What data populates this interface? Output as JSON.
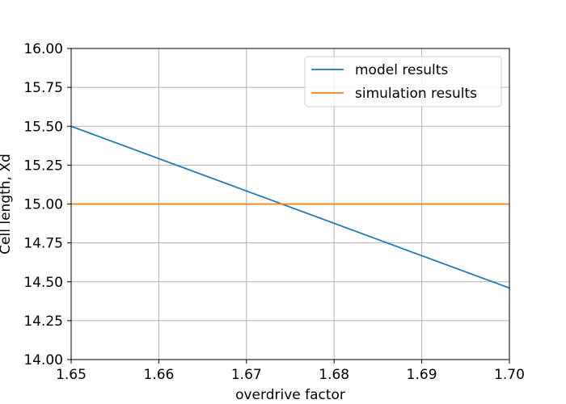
{
  "chart_data": {
    "type": "line",
    "title": "",
    "xlabel": "overdrive factor",
    "ylabel": "Cell length, Xd",
    "xlim": [
      1.65,
      1.7
    ],
    "ylim": [
      14.0,
      16.0
    ],
    "x_ticks": [
      "1.65",
      "1.66",
      "1.67",
      "1.68",
      "1.69",
      "1.70"
    ],
    "y_ticks": [
      "14.00",
      "14.25",
      "14.50",
      "14.75",
      "15.00",
      "15.25",
      "15.50",
      "15.75",
      "16.00"
    ],
    "grid": true,
    "legend_position": "top-right",
    "series": [
      {
        "name": "model results",
        "color": "#1f77b4",
        "x": [
          1.65,
          1.7
        ],
        "y": [
          15.5,
          14.46
        ]
      },
      {
        "name": "simulation results",
        "color": "#ff7f0e",
        "x": [
          1.65,
          1.7
        ],
        "y": [
          15.0,
          15.0
        ]
      }
    ]
  }
}
